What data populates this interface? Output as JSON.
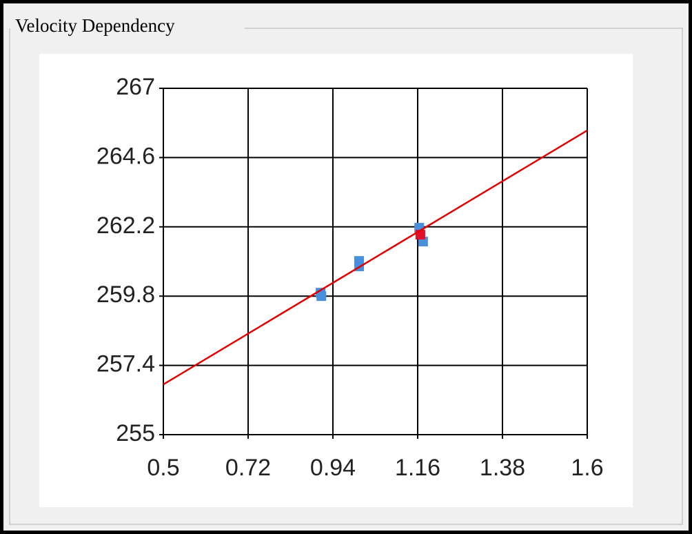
{
  "chart_data": {
    "type": "scatter",
    "title": "Velocity Dependency",
    "xlim": [
      0.5,
      1.6
    ],
    "xticks": [
      0.5,
      0.72,
      0.94,
      1.16,
      1.38,
      1.6
    ],
    "ylim": [
      255,
      267
    ],
    "yticks": [
      255,
      257.4,
      259.8,
      262.2,
      264.6,
      267
    ],
    "grid": true,
    "series": [
      {
        "type": "scatter",
        "color": "#4a8fdc",
        "x": [
          0.908,
          0.91,
          1.008,
          1.008,
          1.164,
          1.174
        ],
        "values": [
          259.92,
          259.8,
          261.02,
          260.83,
          262.17,
          261.69
        ]
      },
      {
        "type": "scatter",
        "color": "#e0102a",
        "x": [
          1.167
        ],
        "values": [
          261.93
        ]
      },
      {
        "type": "line",
        "color": "#e00000",
        "x": [
          0.5,
          1.6
        ],
        "values": [
          256.74,
          265.54
        ]
      }
    ]
  }
}
